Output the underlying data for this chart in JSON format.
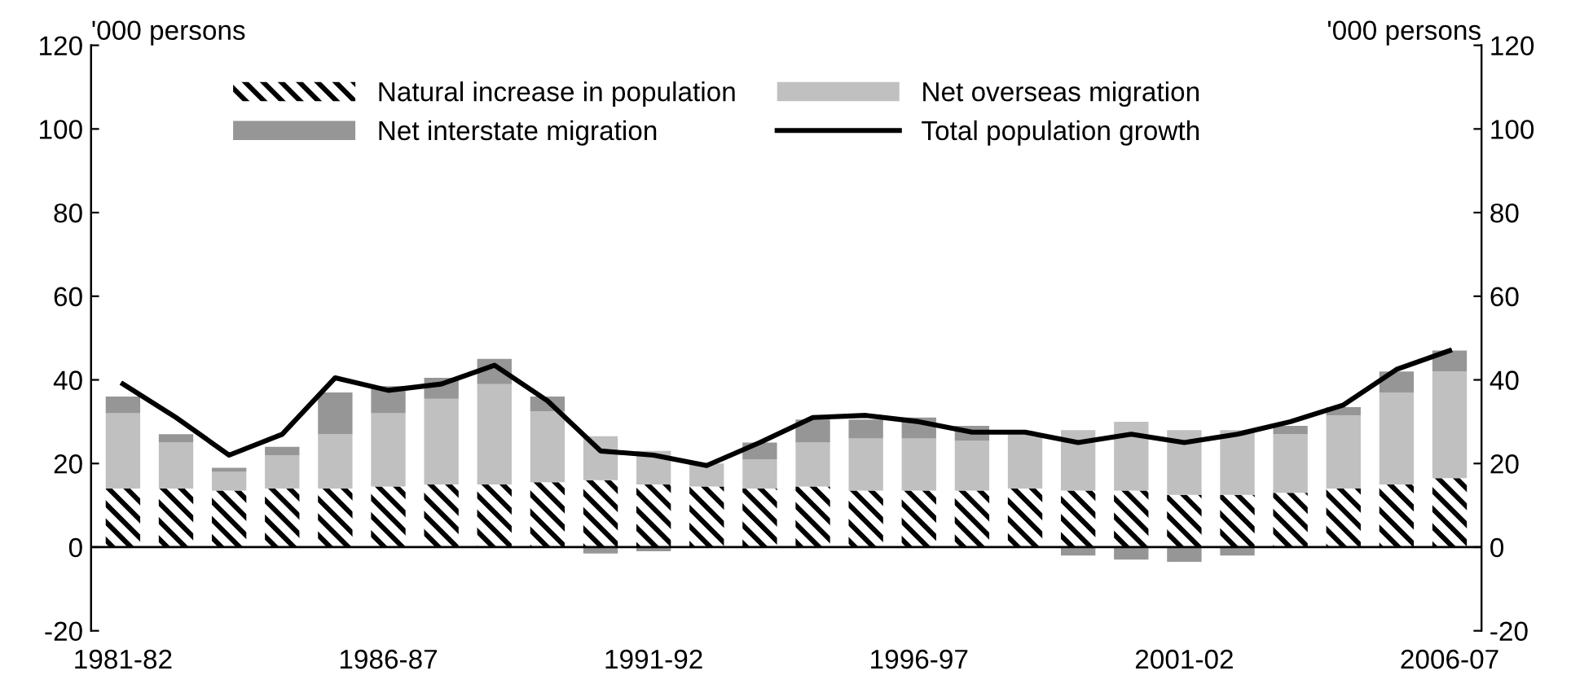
{
  "chart_data": {
    "type": "bar",
    "stacked": true,
    "categories": [
      "1981-82",
      null,
      null,
      null,
      null,
      "1986-87",
      null,
      null,
      null,
      null,
      "1991-92",
      null,
      null,
      null,
      null,
      "1996-97",
      null,
      null,
      null,
      null,
      "2001-02",
      null,
      null,
      null,
      null,
      "2006-07"
    ],
    "series": [
      {
        "name": "Natural increase in population",
        "color": "#000000",
        "values": [
          14,
          14,
          13.5,
          14,
          14,
          14.5,
          15,
          15,
          15.5,
          16,
          15,
          14.5,
          14,
          14.5,
          13.5,
          13.5,
          13.5,
          14,
          13.5,
          13.5,
          12.5,
          12.5,
          13,
          14,
          15,
          16.5
        ]
      },
      {
        "name": "Net overseas migration",
        "color": "#c0c0c0",
        "values": [
          18,
          11,
          4.5,
          8,
          13,
          17.5,
          20.5,
          24,
          17,
          10.5,
          8,
          5.5,
          7,
          10.5,
          12.5,
          12.5,
          12,
          13,
          14.5,
          16.5,
          15.5,
          15.5,
          14,
          17.5,
          22,
          25.5
        ]
      },
      {
        "name": "Net interstate migration",
        "color": "#969696",
        "values": [
          4,
          2,
          1,
          2,
          10,
          6.5,
          5,
          6,
          3.5,
          -1.5,
          -1,
          0,
          4,
          5.5,
          4.5,
          5,
          3.5,
          null,
          -2,
          -3,
          -3.5,
          -2,
          2,
          2,
          5,
          5
        ]
      },
      {
        "name": "Total population growth",
        "color": "#000000",
        "type": "line",
        "values": [
          39,
          31,
          22,
          27,
          40.5,
          37.5,
          39,
          43.5,
          35,
          23,
          22,
          19.5,
          25,
          31,
          31.5,
          30,
          27.5,
          27.5,
          25,
          27,
          25,
          27,
          30,
          34,
          42.5,
          47
        ]
      }
    ],
    "ylabel": "'000 persons",
    "y2label": "'000 persons",
    "ylim": [
      -20,
      120
    ],
    "yticks": [
      -20,
      0,
      20,
      40,
      60,
      80,
      100,
      120
    ],
    "y2lim": [
      -20,
      120
    ],
    "y2ticks": [
      -20,
      0,
      20,
      40,
      60,
      80,
      100,
      120
    ],
    "legend": "top"
  }
}
